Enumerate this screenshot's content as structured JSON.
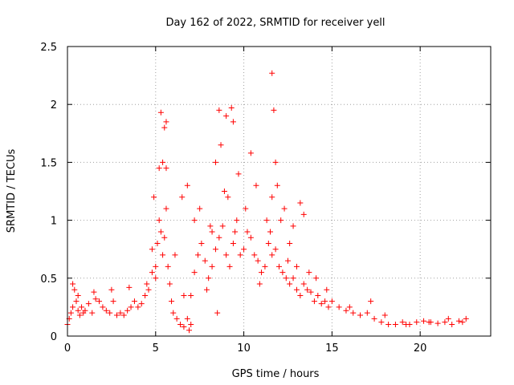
{
  "chart_data": {
    "type": "scatter",
    "title": "Day 162 of 2022, SRMTID for receiver yell",
    "xlabel": "GPS time / hours",
    "ylabel": "SRMTID / TECUs",
    "xlim": [
      0,
      24
    ],
    "ylim": [
      0,
      2.5
    ],
    "xticks": [
      0,
      5,
      10,
      15,
      20
    ],
    "xtick_labels": [
      "0",
      "5",
      "10",
      "15",
      "20"
    ],
    "yticks": [
      0,
      0.5,
      1,
      1.5,
      2,
      2.5
    ],
    "ytick_labels": [
      "0",
      "0.5",
      "1",
      "1.5",
      "2",
      "2.5"
    ],
    "grid": true,
    "marker": "+",
    "color": "#ff0000",
    "series": [
      {
        "name": "SRMTID",
        "x": [
          0.0,
          0.1,
          0.2,
          0.3,
          0.4,
          0.5,
          0.6,
          0.7,
          0.8,
          0.9,
          1.0,
          1.2,
          1.4,
          1.6,
          1.8,
          2.0,
          2.2,
          2.4,
          2.6,
          2.8,
          3.0,
          3.2,
          3.4,
          3.6,
          3.8,
          4.0,
          4.2,
          4.4,
          4.6,
          4.8,
          5.0,
          5.1,
          5.2,
          5.3,
          5.4,
          5.5,
          5.6,
          5.7,
          5.8,
          5.9,
          6.0,
          6.2,
          6.4,
          6.6,
          6.8,
          7.0,
          7.2,
          7.4,
          7.6,
          7.8,
          8.0,
          8.2,
          8.4,
          8.6,
          8.8,
          9.0,
          9.2,
          9.4,
          9.6,
          9.8,
          10.0,
          10.2,
          10.4,
          10.6,
          10.8,
          11.0,
          11.2,
          11.4,
          11.6,
          11.8,
          12.0,
          12.2,
          12.4,
          12.6,
          12.8,
          13.0,
          13.2,
          13.4,
          13.6,
          13.8,
          14.0,
          14.2,
          14.4,
          14.6,
          14.8,
          15.0,
          15.4,
          15.8,
          16.2,
          16.6,
          17.0,
          17.4,
          17.8,
          18.2,
          18.6,
          19.0,
          19.4,
          19.8,
          20.2,
          20.6,
          21.0,
          21.4,
          21.8,
          22.2,
          22.6,
          0.3,
          0.6,
          1.5,
          2.5,
          3.5,
          4.5,
          5.3,
          5.5,
          5.6,
          5.4,
          5.6,
          6.8,
          7.2,
          8.6,
          8.7,
          9.0,
          9.1,
          9.3,
          9.4,
          10.4,
          11.6,
          11.7,
          11.8,
          11.6,
          11.9,
          12.3,
          12.8,
          13.2,
          13.4,
          4.8,
          4.9,
          5.0,
          5.2,
          6.1,
          6.5,
          7.5,
          7.9,
          8.1,
          8.4,
          8.9,
          9.5,
          9.7,
          10.1,
          10.7,
          11.3,
          11.5,
          12.6,
          13.0,
          6.6,
          6.9,
          7.0,
          8.2,
          8.5,
          10.9,
          12.1,
          12.5,
          13.7,
          14.1,
          14.7,
          16.0,
          17.2,
          18.0,
          19.2,
          20.5,
          21.6,
          22.4
        ],
        "y": [
          0.1,
          0.15,
          0.2,
          0.25,
          0.4,
          0.3,
          0.22,
          0.18,
          0.25,
          0.2,
          0.22,
          0.28,
          0.2,
          0.32,
          0.3,
          0.25,
          0.22,
          0.2,
          0.3,
          0.18,
          0.2,
          0.18,
          0.22,
          0.25,
          0.3,
          0.25,
          0.28,
          0.35,
          0.4,
          0.55,
          0.6,
          0.8,
          1.0,
          0.9,
          0.7,
          0.85,
          1.1,
          0.6,
          0.45,
          0.3,
          0.2,
          0.15,
          0.1,
          0.08,
          0.15,
          0.35,
          0.55,
          0.7,
          0.8,
          0.65,
          0.5,
          0.6,
          0.75,
          0.85,
          0.95,
          0.7,
          0.6,
          0.8,
          1.0,
          0.7,
          0.75,
          0.9,
          0.85,
          0.7,
          0.65,
          0.55,
          0.6,
          0.8,
          0.7,
          0.75,
          0.6,
          0.55,
          0.5,
          0.45,
          0.5,
          0.4,
          0.35,
          0.45,
          0.4,
          0.38,
          0.3,
          0.35,
          0.28,
          0.3,
          0.25,
          0.3,
          0.25,
          0.22,
          0.2,
          0.18,
          0.2,
          0.15,
          0.12,
          0.1,
          0.1,
          0.12,
          0.1,
          0.12,
          0.13,
          0.12,
          0.11,
          0.12,
          0.1,
          0.13,
          0.15,
          0.45,
          0.35,
          0.38,
          0.4,
          0.42,
          0.45,
          1.93,
          1.8,
          1.85,
          1.5,
          1.45,
          1.3,
          1.0,
          1.95,
          1.65,
          1.9,
          1.2,
          1.97,
          1.85,
          1.58,
          2.27,
          1.95,
          1.5,
          1.2,
          1.3,
          1.1,
          0.95,
          1.15,
          1.05,
          0.75,
          1.2,
          0.5,
          1.45,
          0.7,
          1.2,
          1.1,
          0.4,
          0.95,
          1.5,
          1.25,
          0.9,
          1.4,
          1.1,
          1.3,
          1.0,
          0.9,
          0.8,
          0.6,
          0.35,
          0.05,
          0.1,
          0.9,
          0.2,
          0.45,
          1.0,
          0.65,
          0.55,
          0.5,
          0.4,
          0.25,
          0.3,
          0.18,
          0.1,
          0.12,
          0.15,
          0.12
        ]
      }
    ]
  }
}
